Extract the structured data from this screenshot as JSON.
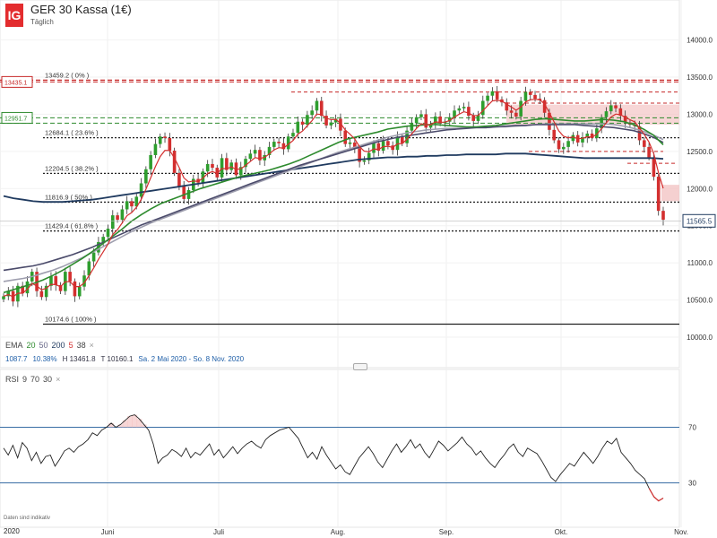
{
  "header": {
    "logo": "IG",
    "title": "GER 30 Kassa (1€)",
    "subtitle": "Täglich"
  },
  "indicators": {
    "ema_label": "EMA",
    "ema_periods": [
      {
        "value": "20",
        "color": "#2e8b2e"
      },
      {
        "value": "50",
        "color": "#6a6a8a"
      },
      {
        "value": "200",
        "color": "#1f3a5f"
      },
      {
        "value": "5",
        "color": "#d32f2f"
      },
      {
        "value": "38",
        "color": "#444444"
      }
    ],
    "close_icon": "×",
    "stats": {
      "change": "1087.7",
      "change_pct": "10.38%",
      "high": "H 13461.8",
      "low": "T 10160.1",
      "range": "Sa. 2 Mai 2020 - So. 8 Nov. 2020"
    },
    "rsi_label": "RSI",
    "rsi_params": [
      "9",
      "70",
      "30"
    ]
  },
  "footer": {
    "note": "Daten sind indikativ",
    "year": "2020"
  },
  "chart_data": {
    "type": "candlestick",
    "ylim": [
      10000,
      14200
    ],
    "y_ticks": [
      "14000.0",
      "13500.0",
      "13000.0",
      "12500.0",
      "12000.0",
      "11500.0",
      "11000.0",
      "10500.0",
      "10000.0"
    ],
    "x_labels": [
      "Juni",
      "Juli",
      "Aug.",
      "Sep.",
      "Okt.",
      "Nov."
    ],
    "current_price": "11565.5",
    "fib_levels": [
      {
        "label": "13459.2 ( 0% )",
        "value": 13459.2,
        "color": "#c62828",
        "style": "dashed"
      },
      {
        "label": "12684.1 ( 23.6% )",
        "value": 12684.1,
        "color": "#222222",
        "style": "dotted"
      },
      {
        "label": "12204.5 ( 38.2% )",
        "value": 12204.5,
        "color": "#222222",
        "style": "dotted"
      },
      {
        "label": "11816.9 ( 50% )",
        "value": 11816.9,
        "color": "#222222",
        "style": "dotted"
      },
      {
        "label": "11429.4 ( 61.8% )",
        "value": 11429.4,
        "color": "#222222",
        "style": "dotted"
      },
      {
        "label": "10174.6 ( 100% )",
        "value": 10174.6,
        "color": "#222222",
        "style": "solid"
      }
    ],
    "left_tags": [
      {
        "label": "13435.1",
        "value": 13435.1,
        "color": "#c62828"
      },
      {
        "label": "12951.7",
        "value": 12951.7,
        "color": "#2e8b2e"
      }
    ],
    "green_dashed": [
      12951.7,
      12880
    ],
    "red_dashed": [
      13300,
      13150,
      12500,
      12340
    ],
    "red_zone_top": [
      13130,
      12860
    ],
    "red_zone_small": [
      12050,
      11830
    ],
    "closes": [
      10550,
      10620,
      10480,
      10690,
      10590,
      10750,
      10880,
      10620,
      10540,
      10690,
      10820,
      10700,
      10620,
      10880,
      10750,
      10550,
      10680,
      10830,
      11020,
      11140,
      11280,
      11350,
      11460,
      11640,
      11580,
      11720,
      11830,
      11760,
      11890,
      12070,
      12260,
      12450,
      12600,
      12700,
      12680,
      12510,
      12210,
      12030,
      11860,
      11980,
      12130,
      12080,
      12230,
      12330,
      12280,
      12150,
      12410,
      12250,
      12350,
      12180,
      12290,
      12400,
      12470,
      12520,
      12380,
      12450,
      12560,
      12630,
      12610,
      12530,
      12700,
      12750,
      12900,
      12860,
      12990,
      13050,
      13180,
      12980,
      12850,
      12890,
      12940,
      12780,
      12600,
      12620,
      12540,
      12360,
      12380,
      12480,
      12610,
      12510,
      12640,
      12580,
      12520,
      12700,
      12610,
      12780,
      12880,
      12960,
      13000,
      12820,
      12870,
      12970,
      12880,
      12900,
      12960,
      13050,
      13080,
      13100,
      12980,
      12910,
      12990,
      13180,
      13250,
      13310,
      13200,
      13160,
      13050,
      13020,
      12970,
      13180,
      13300,
      13260,
      13210,
      13190,
      13020,
      12790,
      12650,
      12530,
      12560,
      12640,
      12720,
      12620,
      12690,
      12740,
      12680,
      12810,
      12960,
      13040,
      13120,
      13080,
      12980,
      12890,
      12860,
      12840,
      12650,
      12560,
      12420,
      12160,
      11700,
      11580
    ],
    "ema20": [
      10600,
      10640,
      10680,
      10720,
      10770,
      10830,
      10900,
      10980,
      11060,
      11150,
      11250,
      11350,
      11450,
      11560,
      11650,
      11730,
      11800,
      11850,
      11900,
      11950,
      12000,
      12040,
      12080,
      12120,
      12160,
      12190,
      12220,
      12250,
      12290,
      12330,
      12380,
      12440,
      12500,
      12560,
      12620,
      12670,
      12700,
      12730,
      12760,
      12800,
      12820,
      12840,
      12850,
      12860,
      12860,
      12850,
      12840,
      12830,
      12830,
      12840,
      12850,
      12870,
      12890,
      12910,
      12930,
      12940,
      12930,
      12920,
      12910,
      12910,
      12920,
      12930,
      12920,
      12900,
      12860,
      12800,
      12720,
      12590
    ],
    "ema50": [
      10750,
      10770,
      10790,
      10820,
      10860,
      10900,
      10950,
      11010,
      11070,
      11140,
      11210,
      11280,
      11350,
      11420,
      11480,
      11540,
      11590,
      11640,
      11690,
      11740,
      11790,
      11840,
      11890,
      11940,
      11990,
      12040,
      12090,
      12140,
      12190,
      12240,
      12290,
      12340,
      12390,
      12440,
      12490,
      12530,
      12570,
      12610,
      12650,
      12690,
      12720,
      12750,
      12770,
      12790,
      12800,
      12810,
      12810,
      12820,
      12820,
      12820,
      12830,
      12830,
      12840,
      12850,
      12860,
      12870,
      12870,
      12870,
      12870,
      12870,
      12870,
      12870,
      12860,
      12840,
      12810,
      12770,
      12720,
      12660
    ],
    "ema200": [
      11900,
      11870,
      11850,
      11830,
      11820,
      11820,
      11820,
      11830,
      11840,
      11850,
      11870,
      11890,
      11910,
      11930,
      11950,
      11970,
      11990,
      12010,
      12030,
      12050,
      12070,
      12090,
      12110,
      12130,
      12150,
      12170,
      12190,
      12210,
      12230,
      12250,
      12270,
      12290,
      12310,
      12330,
      12350,
      12370,
      12390,
      12400,
      12410,
      12420,
      12420,
      12430,
      12430,
      12440,
      12440,
      12450,
      12450,
      12460,
      12460,
      12460,
      12460,
      12470,
      12470,
      12470,
      12460,
      12450,
      12440,
      12430,
      12420,
      12410,
      12410,
      12410,
      12410,
      12410,
      12410,
      12410,
      12410,
      12400
    ],
    "ema38": [
      10900,
      10920,
      10940,
      10960,
      10990,
      11030,
      11070,
      11110,
      11160,
      11210,
      11270,
      11330,
      11390,
      11450,
      11510,
      11560,
      11610,
      11660,
      11710,
      11760,
      11810,
      11860,
      11910,
      11960,
      12010,
      12060,
      12110,
      12160,
      12210,
      12260,
      12310,
      12350,
      12390,
      12430,
      12470,
      12510,
      12550,
      12590,
      12630,
      12660,
      12690,
      12710,
      12730,
      12750,
      12770,
      12790,
      12800,
      12810,
      12820,
      12820,
      12830,
      12840,
      12850,
      12850,
      12860,
      12860,
      12860,
      12860,
      12860,
      12850,
      12840,
      12830,
      12820,
      12800,
      12780,
      12740,
      12690,
      12620
    ],
    "rsi": {
      "levels": [
        70,
        30
      ],
      "ylim": [
        0,
        100
      ],
      "values": [
        55,
        50,
        57,
        48,
        59,
        55,
        46,
        52,
        44,
        49,
        50,
        42,
        47,
        53,
        55,
        52,
        56,
        58,
        61,
        66,
        64,
        68,
        70,
        73,
        70,
        72,
        75,
        78,
        79,
        76,
        72,
        68,
        58,
        44,
        48,
        50,
        54,
        52,
        49,
        55,
        48,
        52,
        50,
        54,
        58,
        50,
        54,
        48,
        52,
        56,
        51,
        55,
        58,
        60,
        57,
        55,
        61,
        64,
        66,
        68,
        69,
        70,
        66,
        62,
        55,
        48,
        52,
        47,
        56,
        50,
        45,
        40,
        43,
        38,
        36,
        42,
        48,
        52,
        56,
        51,
        45,
        41,
        47,
        53,
        58,
        52,
        56,
        61,
        55,
        58,
        52,
        48,
        54,
        60,
        57,
        53,
        56,
        59,
        63,
        58,
        55,
        50,
        53,
        48,
        44,
        41,
        46,
        50,
        55,
        58,
        52,
        49,
        55,
        53,
        51,
        46,
        40,
        34,
        31,
        36,
        40,
        44,
        42,
        47,
        52,
        48,
        44,
        49,
        55,
        60,
        58,
        62,
        52,
        48,
        44,
        39,
        36,
        33,
        26,
        20,
        17,
        19
      ]
    }
  }
}
